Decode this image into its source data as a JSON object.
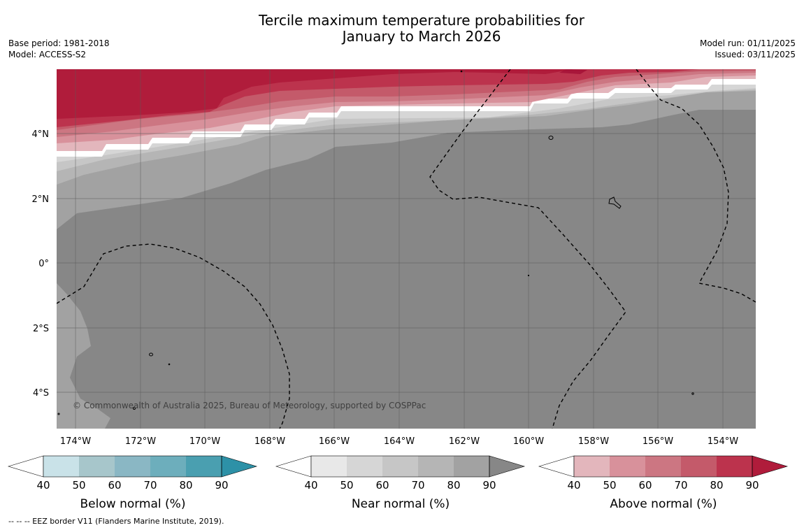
{
  "title": {
    "line1": "Tercile maximum temperature probabilities for",
    "line2": "January to March 2026"
  },
  "meta_left": {
    "base_period": "Base period: 1981-2018",
    "model": "Model: ACCESS-S2"
  },
  "meta_right": {
    "model_run": "Model run: 01/11/2025",
    "issued": "Issued: 03/11/2025"
  },
  "map": {
    "lat_labels": [
      "4°N",
      "2°N",
      "0°",
      "2°S",
      "4°S"
    ],
    "lon_labels": [
      "174°W",
      "172°W",
      "170°W",
      "168°W",
      "166°W",
      "164°W",
      "162°W",
      "160°W",
      "158°W",
      "156°W",
      "154°W"
    ],
    "copyright": "© Commonwealth of Australia 2025, Bureau of Meteorology, supported by COSPPac"
  },
  "legends": [
    {
      "label": "Below normal (%)",
      "colors": [
        "#ffffff",
        "#c9e2e8",
        "#a7c6cb",
        "#8ab7c4",
        "#6daebc",
        "#4a9fb0",
        "#2d91a7"
      ],
      "ticks": [
        "40",
        "50",
        "60",
        "70",
        "80",
        "90"
      ]
    },
    {
      "label": "Near normal (%)",
      "colors": [
        "#ffffff",
        "#e8e8e8",
        "#d6d6d6",
        "#c6c6c6",
        "#b5b5b5",
        "#a2a2a2",
        "#878787"
      ],
      "ticks": [
        "40",
        "50",
        "60",
        "70",
        "80",
        "90"
      ]
    },
    {
      "label": "Above normal (%)",
      "colors": [
        "#ffffff",
        "#e3b6bc",
        "#d8919b",
        "#cc7682",
        "#c45a6a",
        "#bc334d",
        "#b01c3b"
      ],
      "ticks": [
        "40",
        "50",
        "60",
        "70",
        "80",
        "90"
      ]
    }
  ],
  "footnote": "--  --  -- EEZ border V11 (Flanders Marine Institute, 2019)."
}
